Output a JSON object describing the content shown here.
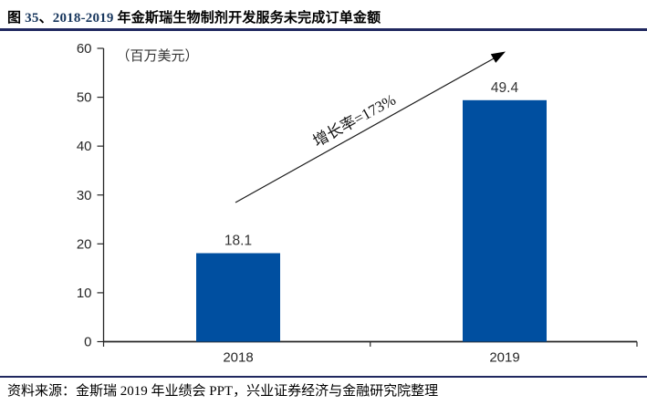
{
  "header": {
    "title_segments": [
      {
        "text": "图 ",
        "color": "#000000"
      },
      {
        "text": "35",
        "color": "#17365D"
      },
      {
        "text": "、",
        "color": "#000000"
      },
      {
        "text": "2018-2019",
        "color": "#17365D"
      },
      {
        "text": " 年金斯瑞生物制剂开发服务未完成订单金额",
        "color": "#000000"
      }
    ],
    "rule_color": "#20285F"
  },
  "chart_data": {
    "type": "bar",
    "title": "2018-2019 年金斯瑞生物制剂开发服务未完成订单金额",
    "unit_label": "（百万美元）",
    "categories": [
      "2018",
      "2019"
    ],
    "values": [
      18.1,
      49.4
    ],
    "data_labels": [
      "18.1",
      "49.4"
    ],
    "ylim": [
      0,
      60
    ],
    "yticks": [
      0,
      10,
      20,
      30,
      40,
      50,
      60
    ],
    "grid": false,
    "legend": "none",
    "bar_color": "#004FA0",
    "axis_color": "#262626",
    "label_color": "#333333",
    "annotation": {
      "text": "增长率=173%",
      "type": "growth-arrow"
    }
  },
  "footer": {
    "source": "资料来源：金斯瑞 2019 年业绩会 PPT，兴业证券经济与金融研究院整理",
    "rule_color": "#20285F"
  }
}
